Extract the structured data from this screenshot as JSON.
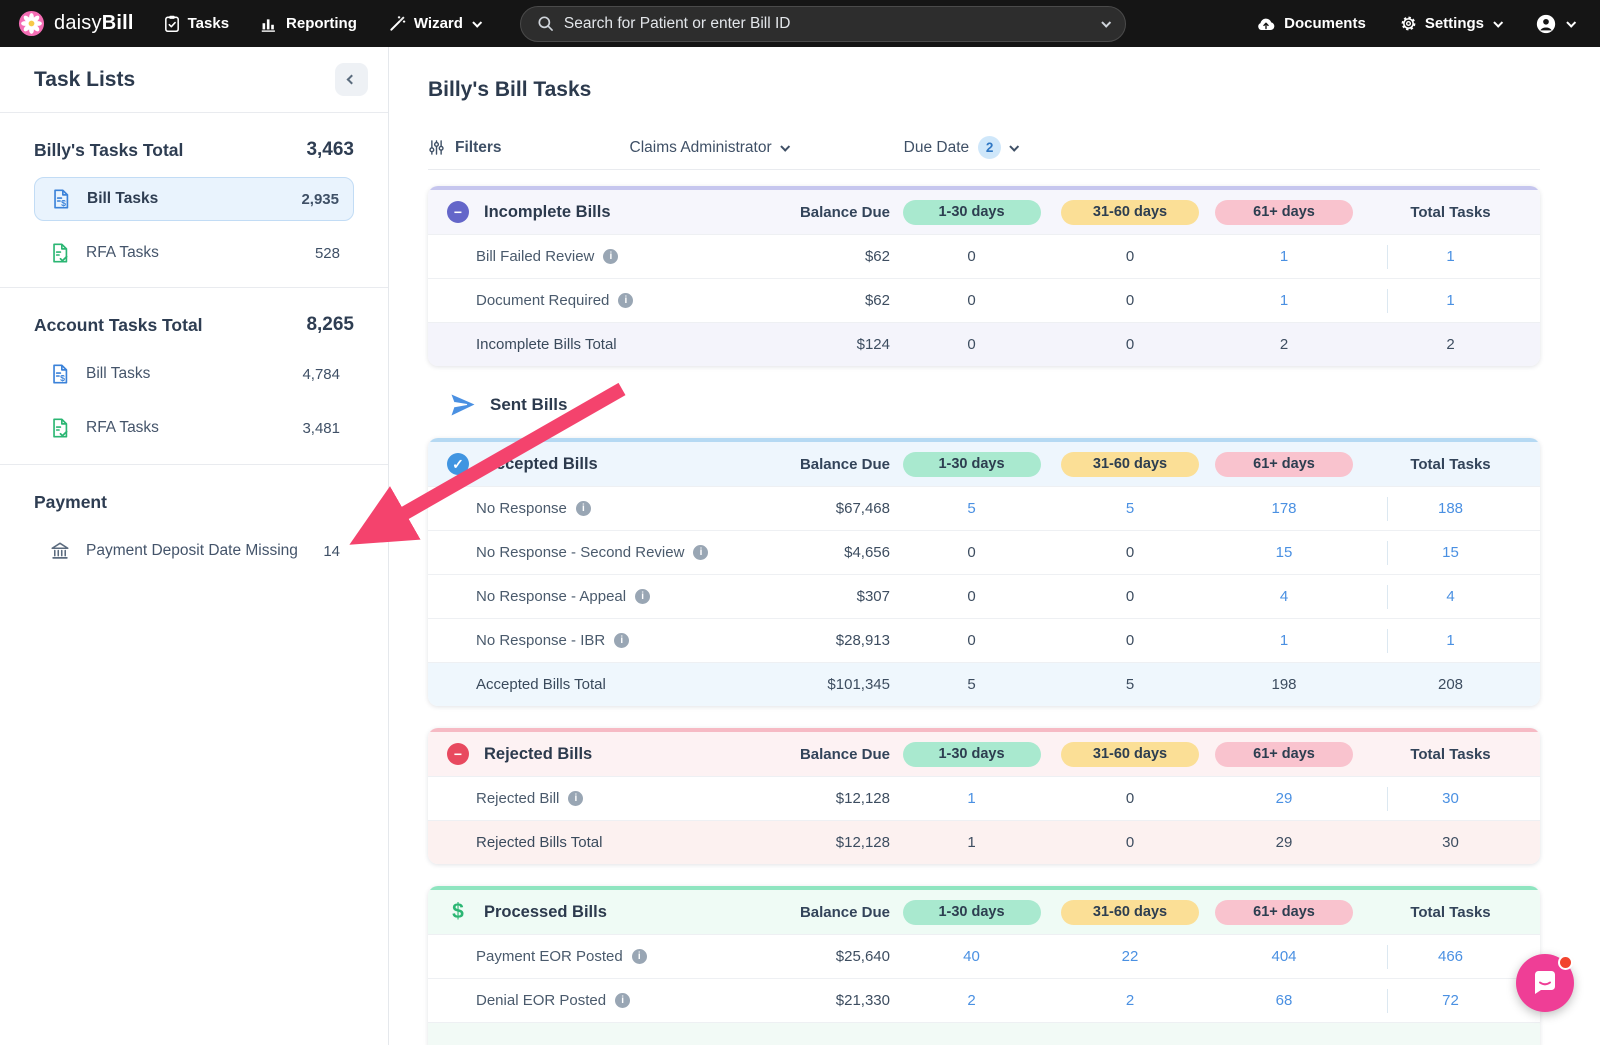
{
  "navbar": {
    "brand_daisy": "daisy",
    "brand_bill": "Bill",
    "tasks_label": "Tasks",
    "reporting_label": "Reporting",
    "wizard_label": "Wizard",
    "search_placeholder": "Search for Patient or enter Bill ID",
    "documents_label": "Documents",
    "settings_label": "Settings"
  },
  "sidebar": {
    "title": "Task Lists",
    "sections": [
      {
        "heading": "Billy's Tasks Total",
        "total": "3,463",
        "items": [
          {
            "label": "Bill Tasks",
            "count": "2,935",
            "selected": true
          },
          {
            "label": "RFA Tasks",
            "count": "528",
            "selected": false
          }
        ]
      },
      {
        "heading": "Account Tasks Total",
        "total": "8,265",
        "items": [
          {
            "label": "Bill Tasks",
            "count": "4,784",
            "selected": false
          },
          {
            "label": "RFA Tasks",
            "count": "3,481",
            "selected": false
          }
        ]
      },
      {
        "heading": "Payment",
        "total": "",
        "items": [
          {
            "label": "Payment Deposit Date Missing",
            "count": "14",
            "selected": false
          }
        ]
      }
    ]
  },
  "main": {
    "title": "Billy's Bill Tasks",
    "filters_label": "Filters",
    "filter_controls": [
      {
        "label": "Claims Administrator",
        "badge": ""
      },
      {
        "label": "Due Date",
        "badge": "2"
      }
    ],
    "columns": {
      "balance_label": "Balance Due",
      "pills": [
        {
          "label": "1-30 days",
          "color": "#a9e9cf"
        },
        {
          "label": "31-60 days",
          "color": "#fbdf96"
        },
        {
          "label": "61+ days",
          "color": "#f9c3ce"
        }
      ],
      "total_label": "Total Tasks"
    },
    "sent_bills_label": "Sent Bills",
    "tables": [
      {
        "id": "incomplete-bills",
        "title": "Incomplete Bills",
        "icon": "minus",
        "colors": {
          "bar": "#c6c6ee",
          "header_bg": "#f6f6fc",
          "icon": "#6466c9",
          "total_bg": "#f4f4fb"
        },
        "rows": [
          {
            "label": "Bill Failed Review",
            "info": true,
            "balance": "$62",
            "counts": [
              {
                "v": "0",
                "link": false
              },
              {
                "v": "0",
                "link": false
              },
              {
                "v": "1",
                "link": true
              },
              {
                "v": "1",
                "link": true
              }
            ]
          },
          {
            "label": "Document Required",
            "info": true,
            "balance": "$62",
            "counts": [
              {
                "v": "0",
                "link": false
              },
              {
                "v": "0",
                "link": false
              },
              {
                "v": "1",
                "link": true
              },
              {
                "v": "1",
                "link": true
              }
            ]
          }
        ],
        "total": {
          "label": "Incomplete Bills Total",
          "balance": "$124",
          "counts": [
            "0",
            "0",
            "2",
            "2"
          ]
        },
        "partial": false
      },
      {
        "id": "accepted-bills",
        "title": "Accepted Bills",
        "icon": "check",
        "colors": {
          "bar": "#b5d9f3",
          "header_bg": "#eef6fd",
          "icon": "#4195e1",
          "total_bg": "#eff7fd"
        },
        "rows": [
          {
            "label": "No Response",
            "info": true,
            "balance": "$67,468",
            "counts": [
              {
                "v": "5",
                "link": true
              },
              {
                "v": "5",
                "link": true
              },
              {
                "v": "178",
                "link": true
              },
              {
                "v": "188",
                "link": true
              }
            ]
          },
          {
            "label": "No Response - Second Review",
            "info": true,
            "balance": "$4,656",
            "counts": [
              {
                "v": "0",
                "link": false
              },
              {
                "v": "0",
                "link": false
              },
              {
                "v": "15",
                "link": true
              },
              {
                "v": "15",
                "link": true
              }
            ]
          },
          {
            "label": "No Response - Appeal",
            "info": true,
            "balance": "$307",
            "counts": [
              {
                "v": "0",
                "link": false
              },
              {
                "v": "0",
                "link": false
              },
              {
                "v": "4",
                "link": true
              },
              {
                "v": "4",
                "link": true
              }
            ]
          },
          {
            "label": "No Response - IBR",
            "info": true,
            "balance": "$28,913",
            "counts": [
              {
                "v": "0",
                "link": false
              },
              {
                "v": "0",
                "link": false
              },
              {
                "v": "1",
                "link": true
              },
              {
                "v": "1",
                "link": true
              }
            ]
          }
        ],
        "total": {
          "label": "Accepted Bills Total",
          "balance": "$101,345",
          "counts": [
            "5",
            "5",
            "198",
            "208"
          ]
        },
        "partial": false
      },
      {
        "id": "rejected-bills",
        "title": "Rejected Bills",
        "icon": "minus",
        "colors": {
          "bar": "#f6bac4",
          "header_bg": "#fdf2f3",
          "icon": "#e8495f",
          "total_bg": "#fcf1f0"
        },
        "rows": [
          {
            "label": "Rejected Bill",
            "info": true,
            "balance": "$12,128",
            "counts": [
              {
                "v": "1",
                "link": true
              },
              {
                "v": "0",
                "link": false
              },
              {
                "v": "29",
                "link": true
              },
              {
                "v": "30",
                "link": true
              }
            ]
          }
        ],
        "total": {
          "label": "Rejected Bills Total",
          "balance": "$12,128",
          "counts": [
            "1",
            "0",
            "29",
            "30"
          ]
        },
        "partial": false
      },
      {
        "id": "processed-bills",
        "title": "Processed Bills",
        "icon": "dollar",
        "colors": {
          "bar": "#8fe5c0",
          "header_bg": "#effbf5",
          "icon": "#2bb673",
          "total_bg": "#f2faf6"
        },
        "rows": [
          {
            "label": "Payment EOR Posted",
            "info": true,
            "balance": "$25,640",
            "counts": [
              {
                "v": "40",
                "link": true
              },
              {
                "v": "22",
                "link": true
              },
              {
                "v": "404",
                "link": true
              },
              {
                "v": "466",
                "link": true
              }
            ]
          },
          {
            "label": "Denial EOR Posted",
            "info": true,
            "balance": "$21,330",
            "counts": [
              {
                "v": "2",
                "link": true
              },
              {
                "v": "2",
                "link": true
              },
              {
                "v": "68",
                "link": true
              },
              {
                "v": "72",
                "link": true
              }
            ]
          }
        ],
        "total": null,
        "partial": true
      }
    ]
  },
  "colors": {
    "navbar_bg": "#151515",
    "brand_pink": "#f46db4",
    "link_blue": "#4a90e2",
    "arrow_pink": "#f4436d",
    "chat_pink": "#ef3e96",
    "chat_dot_red": "#f2442e"
  },
  "annotation": {
    "arrow_points_to": "Payment Deposit Date Missing"
  }
}
